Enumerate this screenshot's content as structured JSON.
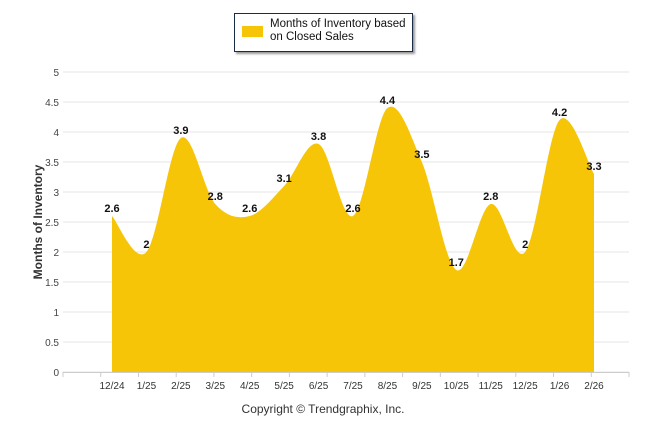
{
  "chart_data": {
    "type": "area",
    "title": "",
    "legend": {
      "label": "Months of Inventory based on Closed Sales",
      "placement": "top-center"
    },
    "ylabel": "Months of Inventory",
    "xlabel": "",
    "ylim": [
      0,
      5
    ],
    "yticks": [
      "0",
      "0.5",
      "1",
      "1.5",
      "2",
      "2.5",
      "3",
      "3.5",
      "4",
      "4.5",
      "5"
    ],
    "categories": [
      "12/24",
      "1/25",
      "2/25",
      "3/25",
      "4/25",
      "5/25",
      "6/25",
      "7/25",
      "8/25",
      "9/25",
      "10/25",
      "11/25",
      "12/25",
      "1/26",
      "2/26"
    ],
    "series": [
      {
        "name": "Months of Inventory based on Closed Sales",
        "values": [
          2.6,
          2,
          3.9,
          2.8,
          2.6,
          3.1,
          3.8,
          2.6,
          4.4,
          3.5,
          1.7,
          2.8,
          2,
          4.2,
          3.3
        ],
        "color": "#F7C508"
      }
    ],
    "grid": true
  },
  "copyright": "Copyright © Trendgraphix, Inc."
}
